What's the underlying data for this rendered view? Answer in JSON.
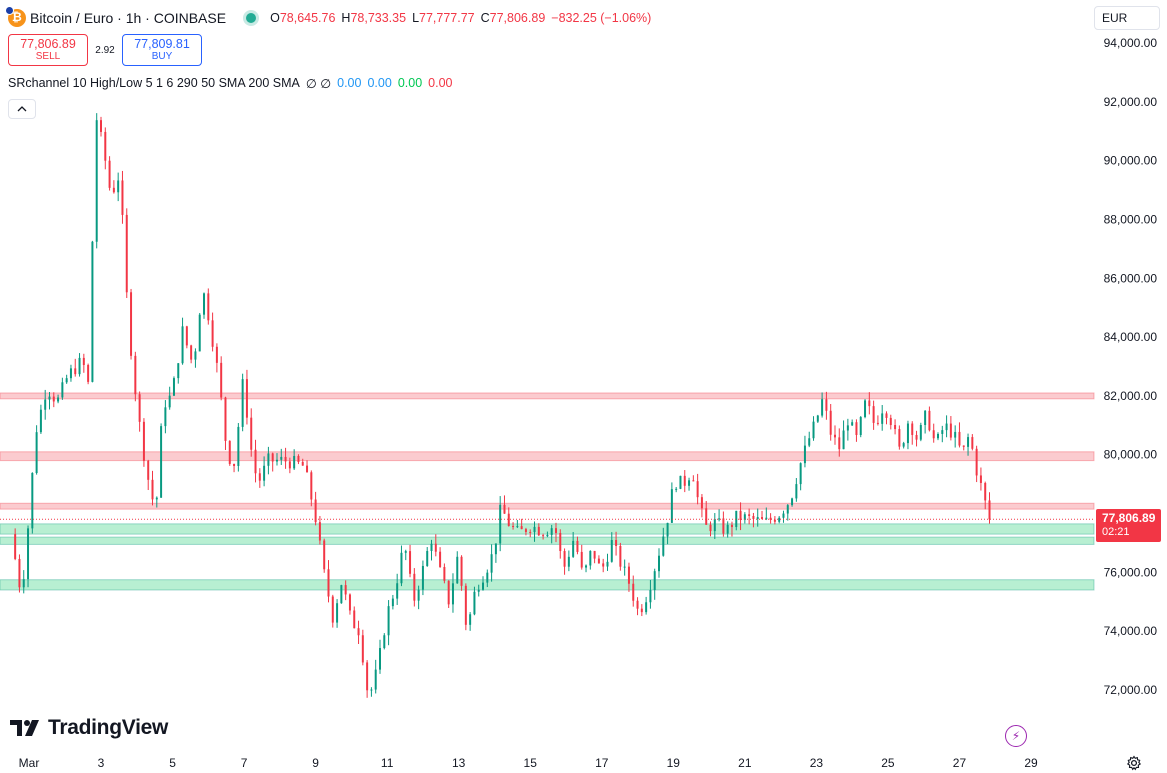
{
  "header": {
    "title": "Bitcoin / Euro · 1h · COINBASE",
    "ohlc": [
      {
        "k": "O",
        "v": "78,645.76"
      },
      {
        "k": "H",
        "v": "78,733.35"
      },
      {
        "k": "L",
        "v": "77,777.77"
      },
      {
        "k": "C",
        "v": "77,806.89"
      }
    ],
    "change": "−832.25 (−1.06%)"
  },
  "trade": {
    "sell_price": "77,806.89",
    "sell_label": "SELL",
    "spread": "2.92",
    "buy_price": "77,809.81",
    "buy_label": "BUY"
  },
  "indicator": {
    "name": "SRchannel 10 High/Low 5 1 6 290 50 SMA 200 SMA",
    "symbols": "∅ ∅",
    "values": [
      "0.00",
      "0.00",
      "0.00",
      "0.00"
    ]
  },
  "currency": "EUR",
  "watermark": "TradingView",
  "last_price": {
    "price": "77,806.89",
    "countdown": "02:21"
  },
  "colors": {
    "up": "#089981",
    "down": "#f23645",
    "resistance_fill": "#f7a1a8",
    "support_fill": "#7ee2ad"
  },
  "chart_data": {
    "type": "candlestick",
    "symbol": "BTC/EUR",
    "interval": "1h",
    "y_ticks": [
      94000,
      92000,
      90000,
      88000,
      86000,
      84000,
      82000,
      80000,
      78000,
      76000,
      74000,
      72000
    ],
    "y_tick_labels": [
      "94,000.00",
      "92,000.00",
      "90,000.00",
      "88,000.00",
      "86,000.00",
      "84,000.00",
      "82,000.00",
      "80,000.00",
      "78,000.00",
      "76,000.00",
      "74,000.00",
      "72,000.00"
    ],
    "x_ticks": [
      {
        "label": "Mar",
        "day": 1
      },
      {
        "label": "3",
        "day": 3
      },
      {
        "label": "5",
        "day": 5
      },
      {
        "label": "7",
        "day": 7
      },
      {
        "label": "9",
        "day": 9
      },
      {
        "label": "11",
        "day": 11
      },
      {
        "label": "13",
        "day": 13
      },
      {
        "label": "15",
        "day": 15
      },
      {
        "label": "17",
        "day": 17
      },
      {
        "label": "19",
        "day": 19
      },
      {
        "label": "21",
        "day": 21
      },
      {
        "label": "23",
        "day": 23
      },
      {
        "label": "25",
        "day": 25
      },
      {
        "label": "27",
        "day": 27
      },
      {
        "label": "29",
        "day": 29
      }
    ],
    "last_price": 77806.89,
    "resistance_zones": [
      [
        81900,
        82100
      ],
      [
        79800,
        80100
      ],
      [
        78150,
        78350
      ]
    ],
    "support_zones": [
      [
        77300,
        77650
      ],
      [
        76950,
        77200
      ],
      [
        75400,
        75750
      ]
    ],
    "price_path": [
      [
        0.6,
        77300
      ],
      [
        0.9,
        75200
      ],
      [
        1.1,
        77800
      ],
      [
        1.3,
        80800
      ],
      [
        1.6,
        82300
      ],
      [
        1.9,
        81800
      ],
      [
        2.2,
        82700
      ],
      [
        2.6,
        83200
      ],
      [
        2.8,
        82200
      ],
      [
        2.95,
        91700
      ],
      [
        3.2,
        90300
      ],
      [
        3.4,
        88800
      ],
      [
        3.65,
        89600
      ],
      [
        3.8,
        86000
      ],
      [
        4.0,
        83000
      ],
      [
        4.2,
        81000
      ],
      [
        4.4,
        79400
      ],
      [
        4.65,
        78000
      ],
      [
        4.85,
        81700
      ],
      [
        5.1,
        82000
      ],
      [
        5.4,
        84200
      ],
      [
        5.7,
        83000
      ],
      [
        5.95,
        85700
      ],
      [
        6.15,
        84600
      ],
      [
        6.4,
        82700
      ],
      [
        6.65,
        80000
      ],
      [
        6.85,
        79700
      ],
      [
        7.1,
        82600
      ],
      [
        7.3,
        80300
      ],
      [
        7.5,
        79000
      ],
      [
        7.8,
        79800
      ],
      [
        8.3,
        79800
      ],
      [
        8.8,
        79600
      ],
      [
        9.1,
        78000
      ],
      [
        9.35,
        76000
      ],
      [
        9.6,
        74500
      ],
      [
        9.85,
        75700
      ],
      [
        10.1,
        74400
      ],
      [
        10.35,
        74000
      ],
      [
        10.6,
        71700
      ],
      [
        10.85,
        72700
      ],
      [
        11.1,
        74500
      ],
      [
        11.35,
        75500
      ],
      [
        11.6,
        77000
      ],
      [
        11.85,
        75000
      ],
      [
        12.1,
        76000
      ],
      [
        12.35,
        77200
      ],
      [
        12.6,
        76000
      ],
      [
        12.85,
        75000
      ],
      [
        13.1,
        76600
      ],
      [
        13.35,
        74000
      ],
      [
        13.6,
        75500
      ],
      [
        13.85,
        76000
      ],
      [
        14.1,
        76700
      ],
      [
        14.3,
        78200
      ],
      [
        14.55,
        77600
      ],
      [
        14.8,
        77300
      ],
      [
        15.1,
        77600
      ],
      [
        15.5,
        77400
      ],
      [
        15.8,
        77600
      ],
      [
        16.05,
        76100
      ],
      [
        16.35,
        77200
      ],
      [
        16.6,
        75800
      ],
      [
        16.85,
        76800
      ],
      [
        17.1,
        76000
      ],
      [
        17.4,
        77000
      ],
      [
        17.65,
        76300
      ],
      [
        17.9,
        75600
      ],
      [
        18.15,
        74600
      ],
      [
        18.4,
        75300
      ],
      [
        18.7,
        76600
      ],
      [
        18.95,
        77800
      ],
      [
        19.15,
        79100
      ],
      [
        19.4,
        79000
      ],
      [
        19.65,
        79500
      ],
      [
        19.85,
        78200
      ],
      [
        20.05,
        77500
      ],
      [
        20.3,
        77700
      ],
      [
        20.6,
        77400
      ],
      [
        20.9,
        77900
      ],
      [
        21.3,
        77800
      ],
      [
        21.7,
        77700
      ],
      [
        22.1,
        78000
      ],
      [
        22.4,
        78500
      ],
      [
        22.65,
        79600
      ],
      [
        22.9,
        80500
      ],
      [
        23.1,
        81100
      ],
      [
        23.3,
        81900
      ],
      [
        23.5,
        80800
      ],
      [
        23.75,
        80200
      ],
      [
        24.0,
        81200
      ],
      [
        24.25,
        80500
      ],
      [
        24.5,
        81800
      ],
      [
        24.75,
        81000
      ],
      [
        25.0,
        81700
      ],
      [
        25.2,
        81200
      ],
      [
        25.45,
        80100
      ],
      [
        25.7,
        81200
      ],
      [
        25.95,
        80500
      ],
      [
        26.2,
        81400
      ],
      [
        26.45,
        80300
      ],
      [
        26.7,
        81000
      ],
      [
        26.95,
        80700
      ],
      [
        27.2,
        80000
      ],
      [
        27.4,
        80700
      ],
      [
        27.55,
        79700
      ],
      [
        27.75,
        78800
      ],
      [
        27.95,
        77800
      ]
    ]
  }
}
